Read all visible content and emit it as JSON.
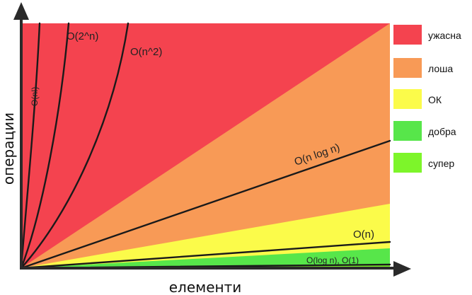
{
  "chart_data": {
    "type": "area",
    "title": "",
    "xlabel": "елементи",
    "ylabel": "операции",
    "grid": false,
    "legend_position": "right",
    "zones": [
      {
        "label": "ужасна",
        "color": "#f4434f"
      },
      {
        "label": "лоша",
        "color": "#f89a56"
      },
      {
        "label": "ОК",
        "color": "#fbfb4a"
      },
      {
        "label": "добра",
        "color": "#57e64a"
      },
      {
        "label": "супер",
        "color": "#7df52a"
      }
    ],
    "curves": [
      {
        "name": "O(n!)",
        "color": "#1a1a1a"
      },
      {
        "name": "O(2^n)",
        "color": "#1a1a1a"
      },
      {
        "name": "O(n^2)",
        "color": "#1a1a1a"
      },
      {
        "name": "O(n log n)",
        "color": "#1a1a1a"
      },
      {
        "name": "O(n)",
        "color": "#1a1a1a"
      },
      {
        "name": "O(log n), O(1)",
        "color": "#1a1a1a"
      }
    ]
  }
}
